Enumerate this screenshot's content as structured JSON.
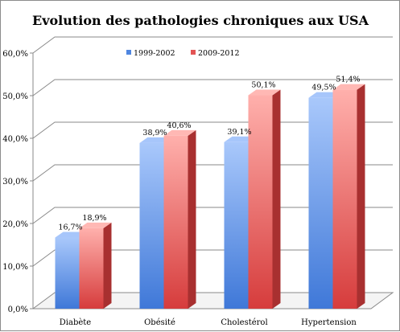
{
  "chart_data": {
    "type": "bar",
    "title": "Evolution des pathologies chroniques aux USA",
    "xlabel": "",
    "ylabel": "",
    "categories": [
      "Diabète",
      "Obésité",
      "Cholestérol",
      "Hypertension"
    ],
    "series": [
      {
        "name": "1999-2002",
        "values": [
          16.7,
          38.9,
          39.1,
          49.5
        ],
        "labels": [
          "16,7%",
          "38,9%",
          "39,1%",
          "49,5%"
        ],
        "color": "#6f9be6"
      },
      {
        "name": "2009-2012",
        "values": [
          18.9,
          40.6,
          50.1,
          51.4
        ],
        "labels": [
          "18,9%",
          "40,6%",
          "50,1%",
          "51,4%"
        ],
        "color": "#f28080"
      }
    ],
    "ylim": [
      0,
      60
    ],
    "yticks": [
      "0,0%",
      "10,0%",
      "20,0%",
      "30,0%",
      "40,0%",
      "50,0%",
      "60,0%"
    ],
    "grid": true,
    "legend_position": "top-center",
    "style": "3d-column"
  }
}
